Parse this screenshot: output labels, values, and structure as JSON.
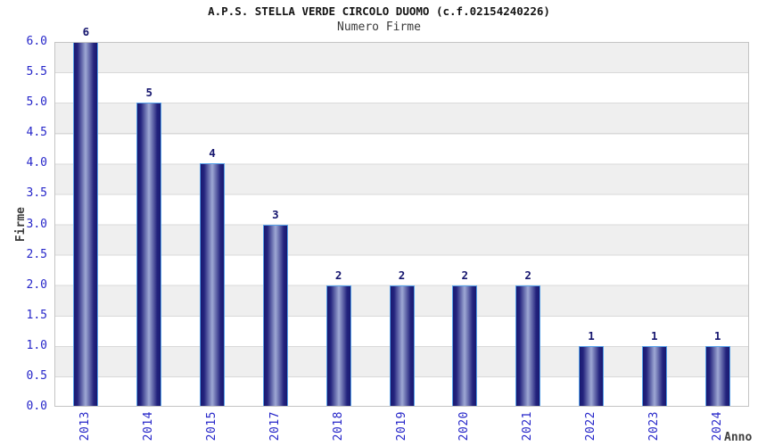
{
  "chart_data": {
    "type": "bar",
    "title": "A.P.S. STELLA VERDE CIRCOLO DUOMO (c.f.02154240226)",
    "subtitle": "Numero Firme",
    "categories": [
      "2013",
      "2014",
      "2015",
      "2017",
      "2018",
      "2019",
      "2020",
      "2021",
      "2022",
      "2023",
      "2024"
    ],
    "values": [
      6,
      5,
      4,
      3,
      2,
      2,
      2,
      2,
      1,
      1,
      1
    ],
    "xlabel": "Anno",
    "ylabel": "Firme",
    "ylim": [
      0,
      6
    ],
    "y_tick_step": 0.5,
    "y_ticks": [
      "0.0",
      "0.5",
      "1.0",
      "1.5",
      "2.0",
      "2.5",
      "3.0",
      "3.5",
      "4.0",
      "4.5",
      "5.0",
      "5.5",
      "6.0"
    ],
    "legend": "none",
    "grid": "horizontal gridlines every 0.5 with alternating gray/white bands"
  },
  "colors": {
    "title_text": "#141414",
    "subtitle_text": "#3a3a3a",
    "axis_tick_blue": "#2626c9",
    "axis_title_gray": "#3f3f3f",
    "bar_value_navy": "#15156e",
    "bar_gradient_dark": "#191970",
    "bar_gradient_light": "#9ea8d4",
    "bar_border_lightblue": "#56a0e8",
    "band_gray": "#efefef",
    "gridline_gray": "#d9d9d9",
    "plot_border_gray": "#c4c4c4",
    "background": "#ffffff"
  }
}
